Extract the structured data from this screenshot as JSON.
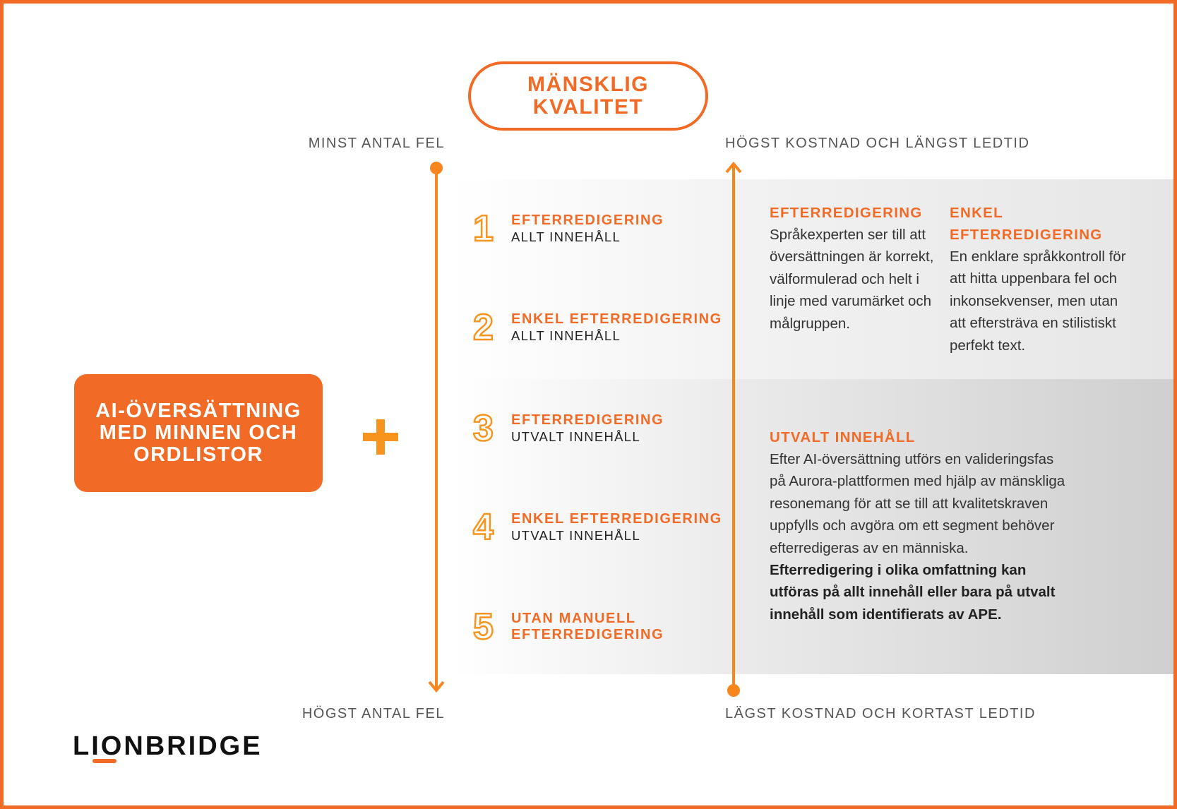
{
  "title": [
    "MÄNSKLIG",
    "KVALITET"
  ],
  "axis": {
    "left_top": "MINST ANTAL FEL",
    "left_bottom": "HÖGST ANTAL FEL",
    "right_top": "HÖGST KOSTNAD OCH LÄNGST LEDTID",
    "right_bottom": "LÄGST KOSTNAD OCH KORTAST LEDTID"
  },
  "ai_box": [
    "AI-ÖVERSÄTTNING",
    "MED MINNEN OCH",
    "ORDLISTOR"
  ],
  "plus_icon": "plus-icon",
  "levels": [
    {
      "num": "1",
      "title": "EFTERREDIGERING",
      "sub": "ALLT INNEHÅLL"
    },
    {
      "num": "2",
      "title": "ENKEL EFTERREDIGERING",
      "sub": "ALLT INNEHÅLL"
    },
    {
      "num": "3",
      "title": "EFTERREDIGERING",
      "sub": "UTVALT INNEHÅLL"
    },
    {
      "num": "4",
      "title": "ENKEL EFTERREDIGERING",
      "sub": "UTVALT INNEHÅLL"
    },
    {
      "num": "5",
      "title": "UTAN MANUELL",
      "sub": "EFTERREDIGERING"
    }
  ],
  "desc": {
    "post_edit": {
      "title": "EFTERREDIGERING",
      "text": "Språkexperten ser till att översättningen är korrekt, välformulerad och helt i linje med varumärket och målgruppen."
    },
    "light_edit": {
      "title": "ENKEL EFTERREDIGERING",
      "text": "En enklare språkkontroll för att hitta uppenbara fel och inkonsekvenser, men utan att eftersträva en stilistiskt perfekt text."
    },
    "selected": {
      "title": "UTVALT INNEHÅLL",
      "text": "Efter AI-översättning utförs en valideringsfas på Aurora-plattformen med hjälp av mänskliga resonemang för att se till att kvalitetskraven uppfylls och avgöra om ett segment behöver efterredigeras av en människa.",
      "bold": "Efterredigering i olika omfattning kan utföras på allt innehåll eller bara på utvalt innehåll som identifierats av APE."
    }
  },
  "logo": "LIONBRIDGE",
  "colors": {
    "accent": "#f26b26",
    "line": "#f7861e"
  }
}
